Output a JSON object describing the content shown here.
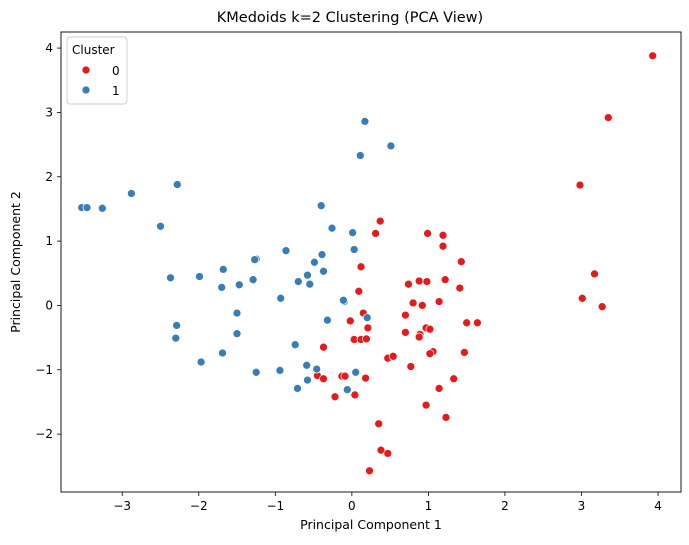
{
  "chart_data": {
    "type": "scatter",
    "title": "KMedoids k=2 Clustering (PCA View)",
    "xlabel": "Principal Component 1",
    "ylabel": "Principal Component 2",
    "xlim": [
      -3.8,
      4.3
    ],
    "ylim": [
      -2.9,
      4.25
    ],
    "xticks": [
      -3,
      -2,
      -1,
      0,
      1,
      2,
      3,
      4
    ],
    "yticks": [
      -2,
      -1,
      0,
      1,
      2,
      3,
      4
    ],
    "xtick_labels": [
      "−3",
      "−2",
      "−1",
      "0",
      "1",
      "2",
      "3",
      "4"
    ],
    "ytick_labels": [
      "−2",
      "−1",
      "0",
      "1",
      "2",
      "3",
      "4"
    ],
    "grid": false,
    "legend": {
      "title": "Cluster",
      "placement": "top-left",
      "entries": [
        "0",
        "1"
      ]
    },
    "series": [
      {
        "name": "0",
        "color": "#e41a1c",
        "points": [
          [
            3.93,
            3.88
          ],
          [
            3.35,
            2.92
          ],
          [
            2.98,
            1.87
          ],
          [
            3.17,
            0.49
          ],
          [
            3.01,
            0.11
          ],
          [
            3.27,
            -0.02
          ],
          [
            0.37,
            1.31
          ],
          [
            0.31,
            1.12
          ],
          [
            0.99,
            1.12
          ],
          [
            1.19,
            1.09
          ],
          [
            1.19,
            0.92
          ],
          [
            1.43,
            0.68
          ],
          [
            0.12,
            0.6
          ],
          [
            0.74,
            0.33
          ],
          [
            0.88,
            0.38
          ],
          [
            0.98,
            0.37
          ],
          [
            1.22,
            0.4
          ],
          [
            1.14,
            0.06
          ],
          [
            0.8,
            0.04
          ],
          [
            0.92,
            0.0
          ],
          [
            1.41,
            0.27
          ],
          [
            0.09,
            0.22
          ],
          [
            0.15,
            -0.12
          ],
          [
            0.7,
            -0.15
          ],
          [
            -0.02,
            -0.24
          ],
          [
            0.21,
            -0.35
          ],
          [
            0.97,
            -0.35
          ],
          [
            1.02,
            -0.37
          ],
          [
            1.5,
            -0.27
          ],
          [
            1.64,
            -0.27
          ],
          [
            0.7,
            -0.42
          ],
          [
            0.89,
            -0.45
          ],
          [
            0.88,
            -0.49
          ],
          [
            0.03,
            -0.53
          ],
          [
            0.12,
            -0.53
          ],
          [
            0.19,
            -0.52
          ],
          [
            -0.37,
            -0.65
          ],
          [
            1.06,
            -0.72
          ],
          [
            1.02,
            -0.75
          ],
          [
            1.47,
            -0.73
          ],
          [
            0.47,
            -0.82
          ],
          [
            0.54,
            -0.79
          ],
          [
            0.77,
            -0.95
          ],
          [
            -0.45,
            -1.09
          ],
          [
            -0.13,
            -1.1
          ],
          [
            -0.09,
            -1.1
          ],
          [
            0.18,
            -1.13
          ],
          [
            -0.37,
            -1.14
          ],
          [
            1.33,
            -1.14
          ],
          [
            1.14,
            -1.29
          ],
          [
            0.04,
            -1.39
          ],
          [
            -0.22,
            -1.42
          ],
          [
            0.97,
            -1.55
          ],
          [
            1.23,
            -1.74
          ],
          [
            0.35,
            -1.84
          ],
          [
            0.38,
            -2.25
          ],
          [
            0.47,
            -2.3
          ],
          [
            0.23,
            -2.57
          ]
        ]
      },
      {
        "name": "1",
        "color": "#377eb8",
        "points": [
          [
            0.17,
            2.86
          ],
          [
            0.51,
            2.48
          ],
          [
            0.11,
            2.33
          ],
          [
            -3.53,
            1.52
          ],
          [
            -3.46,
            1.52
          ],
          [
            -3.26,
            1.51
          ],
          [
            -2.88,
            1.74
          ],
          [
            -2.28,
            1.88
          ],
          [
            -2.5,
            1.23
          ],
          [
            -0.4,
            1.55
          ],
          [
            -0.26,
            1.2
          ],
          [
            0.01,
            1.13
          ],
          [
            -0.39,
            0.79
          ],
          [
            -0.86,
            0.85
          ],
          [
            -1.25,
            0.72
          ],
          [
            -1.27,
            0.71
          ],
          [
            0.03,
            0.87
          ],
          [
            -0.37,
            0.53
          ],
          [
            -0.49,
            0.67
          ],
          [
            -0.58,
            0.47
          ],
          [
            -0.7,
            0.37
          ],
          [
            -0.55,
            0.33
          ],
          [
            -1.68,
            0.56
          ],
          [
            -1.99,
            0.45
          ],
          [
            -2.37,
            0.43
          ],
          [
            -1.29,
            0.4
          ],
          [
            -1.47,
            0.32
          ],
          [
            -1.7,
            0.28
          ],
          [
            -0.93,
            0.11
          ],
          [
            -0.1,
            0.06
          ],
          [
            -0.11,
            0.08
          ],
          [
            -0.32,
            -0.23
          ],
          [
            0.2,
            -0.19
          ],
          [
            -2.29,
            -0.31
          ],
          [
            -1.5,
            -0.44
          ],
          [
            -2.3,
            -0.51
          ],
          [
            -1.5,
            -0.12
          ],
          [
            -0.74,
            -0.61
          ],
          [
            -1.69,
            -0.74
          ],
          [
            -1.97,
            -0.88
          ],
          [
            -0.59,
            -0.93
          ],
          [
            -0.46,
            -0.99
          ],
          [
            -0.94,
            -1.01
          ],
          [
            -1.25,
            -1.04
          ],
          [
            -0.58,
            -1.16
          ],
          [
            0.05,
            -1.04
          ],
          [
            -0.71,
            -1.29
          ],
          [
            -0.06,
            -1.31
          ]
        ]
      }
    ]
  }
}
